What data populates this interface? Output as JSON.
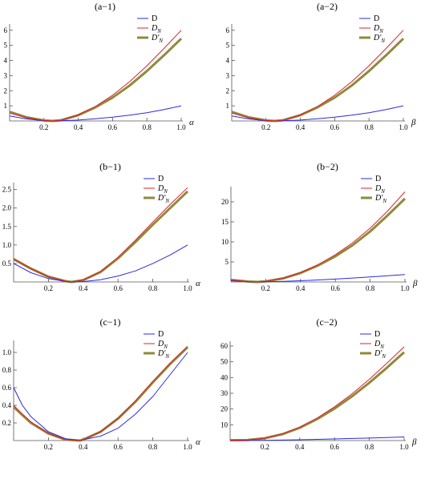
{
  "series_styles": {
    "D": {
      "color": "#2b2be0",
      "width": 1
    },
    "D_N": {
      "color": "#e0202a",
      "width": 1
    },
    "Dp_N": {
      "color": "#8f8a3c",
      "width": 3
    }
  },
  "chart_data": [
    {
      "id": "a-1",
      "type": "line",
      "title": "(a−1)",
      "xlabel": "α",
      "ylabel": "",
      "xlim": [
        0,
        1
      ],
      "ylim": [
        0,
        6.2
      ],
      "xticks": [
        0.2,
        0.4,
        0.6,
        0.8,
        1.0
      ],
      "xtick_labels": [
        "0.2",
        "0.4",
        "0.6",
        "0.8",
        "1.0"
      ],
      "yticks": [
        1,
        2,
        3,
        4,
        5,
        6
      ],
      "ytick_labels": [
        "1",
        "2",
        "3",
        "4",
        "5",
        "6"
      ],
      "legend": [
        "D",
        "D_N",
        "D′_N"
      ],
      "legend_position": "top-right",
      "series": [
        {
          "key": "D",
          "x": [
            0,
            0.1,
            0.2,
            0.25,
            0.3,
            0.4,
            0.5,
            0.6,
            0.7,
            0.8,
            0.9,
            1.0
          ],
          "y": [
            0.33,
            0.13,
            0.01,
            0.0,
            0.01,
            0.06,
            0.15,
            0.25,
            0.38,
            0.54,
            0.75,
            1.0
          ]
        },
        {
          "key": "D_N",
          "x": [
            0,
            0.1,
            0.2,
            0.25,
            0.3,
            0.4,
            0.5,
            0.6,
            0.7,
            0.8,
            0.9,
            1.0
          ],
          "y": [
            0.52,
            0.21,
            0.03,
            0.0,
            0.05,
            0.4,
            0.96,
            1.7,
            2.6,
            3.65,
            4.8,
            6.0
          ]
        },
        {
          "key": "Dp_N",
          "x": [
            0,
            0.1,
            0.2,
            0.25,
            0.3,
            0.4,
            0.5,
            0.6,
            0.7,
            0.8,
            0.9,
            1.0
          ],
          "y": [
            0.6,
            0.24,
            0.03,
            0.0,
            0.05,
            0.38,
            0.9,
            1.55,
            2.35,
            3.3,
            4.35,
            5.45
          ]
        }
      ]
    },
    {
      "id": "a-2",
      "type": "line",
      "title": "(a−2)",
      "xlabel": "β",
      "ylabel": "",
      "xlim": [
        0,
        1
      ],
      "ylim": [
        0,
        6.2
      ],
      "xticks": [
        0.2,
        0.4,
        0.6,
        0.8,
        1.0
      ],
      "xtick_labels": [
        "0.2",
        "0.4",
        "0.6",
        "0.8",
        "1.0"
      ],
      "yticks": [
        1,
        2,
        3,
        4,
        5,
        6
      ],
      "ytick_labels": [
        "1",
        "2",
        "3",
        "4",
        "5",
        "6"
      ],
      "legend": [
        "D",
        "D_N",
        "D′_N"
      ],
      "legend_position": "top-right",
      "series": [
        {
          "key": "D",
          "x": [
            0,
            0.1,
            0.2,
            0.25,
            0.3,
            0.4,
            0.5,
            0.6,
            0.7,
            0.8,
            0.9,
            1.0
          ],
          "y": [
            0.33,
            0.13,
            0.01,
            0.0,
            0.01,
            0.06,
            0.15,
            0.25,
            0.38,
            0.54,
            0.75,
            1.0
          ]
        },
        {
          "key": "D_N",
          "x": [
            0,
            0.1,
            0.2,
            0.25,
            0.3,
            0.4,
            0.5,
            0.6,
            0.7,
            0.8,
            0.9,
            1.0
          ],
          "y": [
            0.52,
            0.21,
            0.03,
            0.0,
            0.05,
            0.4,
            0.96,
            1.7,
            2.6,
            3.65,
            4.8,
            6.0
          ]
        },
        {
          "key": "Dp_N",
          "x": [
            0,
            0.1,
            0.2,
            0.25,
            0.3,
            0.4,
            0.5,
            0.6,
            0.7,
            0.8,
            0.9,
            1.0
          ],
          "y": [
            0.6,
            0.24,
            0.03,
            0.0,
            0.05,
            0.38,
            0.9,
            1.55,
            2.35,
            3.3,
            4.35,
            5.45
          ]
        }
      ]
    },
    {
      "id": "b-1",
      "type": "line",
      "title": "(b−1)",
      "xlabel": "α",
      "ylabel": "",
      "xlim": [
        0,
        1
      ],
      "ylim": [
        0,
        2.6
      ],
      "xticks": [
        0.2,
        0.4,
        0.6,
        0.8,
        1.0
      ],
      "xtick_labels": [
        "0.2",
        "0.4",
        "0.6",
        "0.8",
        "1.0"
      ],
      "yticks": [
        0.5,
        1.0,
        1.5,
        2.0,
        2.5
      ],
      "ytick_labels": [
        "0.5",
        "1.0",
        "1.5",
        "2.0",
        "2.5"
      ],
      "legend": [
        "D",
        "D_N",
        "D′_N"
      ],
      "legend_position": "top-right",
      "series": [
        {
          "key": "D",
          "x": [
            0,
            0.1,
            0.2,
            0.3,
            0.333,
            0.4,
            0.5,
            0.6,
            0.7,
            0.8,
            0.9,
            1.0
          ],
          "y": [
            0.5,
            0.25,
            0.09,
            0.01,
            0.0,
            0.01,
            0.06,
            0.16,
            0.3,
            0.5,
            0.73,
            1.0
          ]
        },
        {
          "key": "D_N",
          "x": [
            0,
            0.1,
            0.2,
            0.3,
            0.333,
            0.4,
            0.5,
            0.6,
            0.7,
            0.8,
            0.9,
            1.0
          ],
          "y": [
            0.62,
            0.36,
            0.14,
            0.02,
            0.0,
            0.05,
            0.28,
            0.67,
            1.13,
            1.62,
            2.1,
            2.55
          ]
        },
        {
          "key": "Dp_N",
          "x": [
            0,
            0.1,
            0.2,
            0.3,
            0.333,
            0.4,
            0.5,
            0.6,
            0.7,
            0.8,
            0.9,
            1.0
          ],
          "y": [
            0.62,
            0.36,
            0.14,
            0.02,
            0.0,
            0.05,
            0.27,
            0.64,
            1.08,
            1.55,
            2.0,
            2.45
          ]
        }
      ]
    },
    {
      "id": "b-2",
      "type": "line",
      "title": "(b−2)",
      "xlabel": "β",
      "ylabel": "",
      "xlim": [
        0,
        1
      ],
      "ylim": [
        0,
        23
      ],
      "xticks": [
        0.2,
        0.4,
        0.6,
        0.8,
        1.0
      ],
      "xtick_labels": [
        "0.2",
        "0.4",
        "0.6",
        "0.8",
        "1.0"
      ],
      "yticks": [
        5,
        10,
        15,
        20
      ],
      "ytick_labels": [
        "5",
        "10",
        "15",
        "20"
      ],
      "legend": [
        "D",
        "D_N",
        "D′_N"
      ],
      "legend_position": "top-right",
      "series": [
        {
          "key": "D",
          "x": [
            0,
            0.1,
            0.15,
            0.2,
            0.3,
            0.4,
            0.5,
            0.6,
            0.7,
            0.8,
            0.9,
            1.0
          ],
          "y": [
            0.3,
            0.05,
            0.0,
            0.03,
            0.15,
            0.3,
            0.5,
            0.72,
            0.97,
            1.25,
            1.55,
            1.85
          ]
        },
        {
          "key": "D_N",
          "x": [
            0,
            0.1,
            0.15,
            0.2,
            0.3,
            0.4,
            0.5,
            0.6,
            0.7,
            0.8,
            0.9,
            1.0
          ],
          "y": [
            0.5,
            0.1,
            0.0,
            0.15,
            0.9,
            2.3,
            4.3,
            6.8,
            9.8,
            13.4,
            17.7,
            22.5
          ]
        },
        {
          "key": "Dp_N",
          "x": [
            0,
            0.1,
            0.15,
            0.2,
            0.3,
            0.4,
            0.5,
            0.6,
            0.7,
            0.8,
            0.9,
            1.0
          ],
          "y": [
            0.5,
            0.1,
            0.0,
            0.15,
            0.9,
            2.25,
            4.1,
            6.4,
            9.2,
            12.6,
            16.6,
            20.8
          ]
        }
      ]
    },
    {
      "id": "c-1",
      "type": "line",
      "title": "(c−1)",
      "xlabel": "α",
      "ylabel": "",
      "xlim": [
        0,
        1
      ],
      "ylim": [
        0,
        1.1
      ],
      "xticks": [
        0.2,
        0.4,
        0.6,
        0.8,
        1.0
      ],
      "xtick_labels": [
        "0.2",
        "0.4",
        "0.6",
        "0.8",
        "1.0"
      ],
      "yticks": [
        0.2,
        0.4,
        0.6,
        0.8,
        1.0
      ],
      "ytick_labels": [
        "0.2",
        "0.4",
        "0.6",
        "0.8",
        "1.0"
      ],
      "legend": [
        "D",
        "D_N",
        "D′_N"
      ],
      "legend_position": "top-right",
      "series": [
        {
          "key": "D",
          "x": [
            0,
            0.05,
            0.1,
            0.2,
            0.3,
            0.38,
            0.4,
            0.5,
            0.6,
            0.7,
            0.8,
            0.9,
            1.0
          ],
          "y": [
            0.6,
            0.4,
            0.27,
            0.1,
            0.02,
            0.0,
            0.01,
            0.05,
            0.14,
            0.3,
            0.5,
            0.75,
            1.0
          ]
        },
        {
          "key": "D_N",
          "x": [
            0,
            0.05,
            0.1,
            0.2,
            0.3,
            0.38,
            0.4,
            0.5,
            0.6,
            0.7,
            0.8,
            0.9,
            1.0
          ],
          "y": [
            0.4,
            0.3,
            0.21,
            0.08,
            0.01,
            0.0,
            0.01,
            0.1,
            0.25,
            0.45,
            0.67,
            0.88,
            1.07
          ]
        },
        {
          "key": "Dp_N",
          "x": [
            0,
            0.05,
            0.1,
            0.2,
            0.3,
            0.38,
            0.4,
            0.5,
            0.6,
            0.7,
            0.8,
            0.9,
            1.0
          ],
          "y": [
            0.38,
            0.29,
            0.2,
            0.08,
            0.01,
            0.0,
            0.01,
            0.1,
            0.25,
            0.44,
            0.66,
            0.87,
            1.06
          ]
        }
      ]
    },
    {
      "id": "c-2",
      "type": "line",
      "title": "(c−2)",
      "xlabel": "β",
      "ylabel": "",
      "xlim": [
        0,
        1
      ],
      "ylim": [
        0,
        61
      ],
      "xticks": [
        0.2,
        0.4,
        0.6,
        0.8,
        1.0
      ],
      "xtick_labels": [
        "0.2",
        "0.4",
        "0.6",
        "0.8",
        "1.0"
      ],
      "yticks": [
        10,
        20,
        30,
        40,
        50,
        60
      ],
      "ytick_labels": [
        "10",
        "20",
        "30",
        "40",
        "50",
        "60"
      ],
      "legend": [
        "D",
        "D_N",
        "D′_N"
      ],
      "legend_position": "top-right",
      "series": [
        {
          "key": "D",
          "x": [
            0,
            0.1,
            0.2,
            0.3,
            0.4,
            0.5,
            0.6,
            0.7,
            0.8,
            0.9,
            1.0
          ],
          "y": [
            0.1,
            0.05,
            0.15,
            0.3,
            0.5,
            0.75,
            1.0,
            1.3,
            1.6,
            1.95,
            2.3
          ]
        },
        {
          "key": "D_N",
          "x": [
            0,
            0.1,
            0.2,
            0.3,
            0.4,
            0.5,
            0.6,
            0.7,
            0.8,
            0.9,
            1.0
          ],
          "y": [
            0.2,
            0.3,
            1.5,
            4.2,
            8.5,
            14.3,
            21.4,
            29.6,
            38.9,
            49.0,
            59.5
          ]
        },
        {
          "key": "Dp_N",
          "x": [
            0,
            0.1,
            0.2,
            0.3,
            0.4,
            0.5,
            0.6,
            0.7,
            0.8,
            0.9,
            1.0
          ],
          "y": [
            0.2,
            0.3,
            1.45,
            4.0,
            8.1,
            13.6,
            20.3,
            28.0,
            36.7,
            46.1,
            56.0
          ]
        }
      ]
    }
  ]
}
